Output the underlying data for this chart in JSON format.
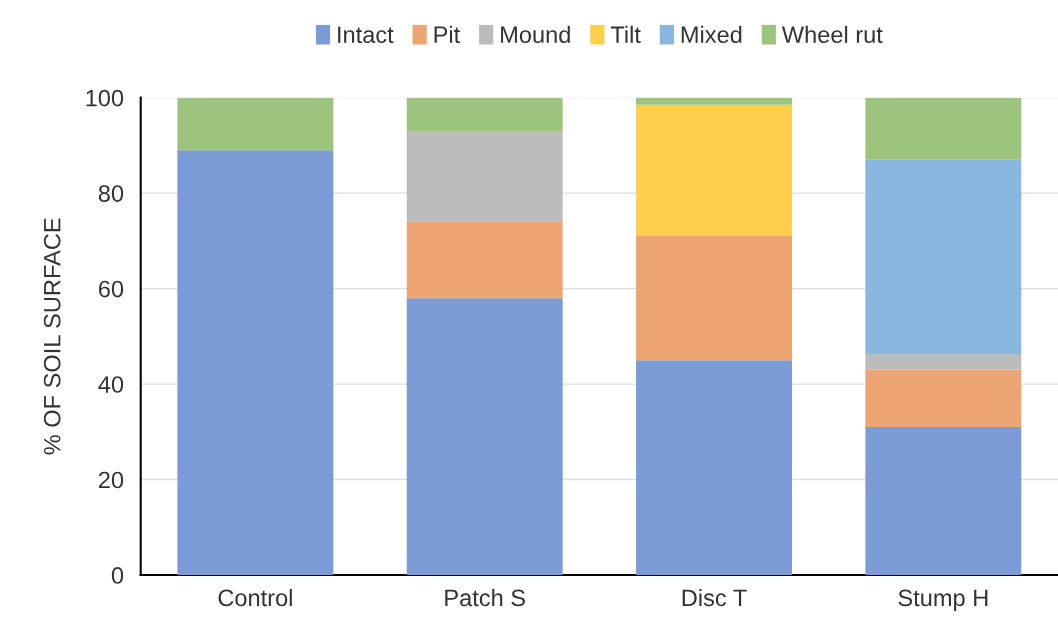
{
  "chart_data": {
    "type": "bar",
    "stacked": true,
    "ylabel": "% OF SOIL SURFACE",
    "categories": [
      "Control",
      "Patch S",
      "Disc T",
      "Stump H"
    ],
    "series": [
      {
        "name": "Intact",
        "color": "#7b9bd6",
        "values": [
          89,
          58,
          45,
          31
        ]
      },
      {
        "name": "Pit",
        "color": "#eda673",
        "values": [
          0,
          16,
          26,
          12
        ]
      },
      {
        "name": "Mound",
        "color": "#bcbcbc",
        "values": [
          0,
          19,
          0,
          3.3
        ]
      },
      {
        "name": "Tilt",
        "color": "#fecf4a",
        "values": [
          0,
          0,
          27.5,
          0
        ]
      },
      {
        "name": "Mixed",
        "color": "#8ab7e0",
        "values": [
          0,
          0,
          0,
          40.7
        ]
      },
      {
        "name": "Wheel rut",
        "color": "#9cc47c",
        "values": [
          11,
          7,
          1.5,
          13
        ]
      }
    ],
    "ylim": [
      0,
      100
    ],
    "yticks": [
      0,
      20,
      40,
      60,
      80,
      100
    ],
    "grid": "y",
    "legend": "top"
  }
}
